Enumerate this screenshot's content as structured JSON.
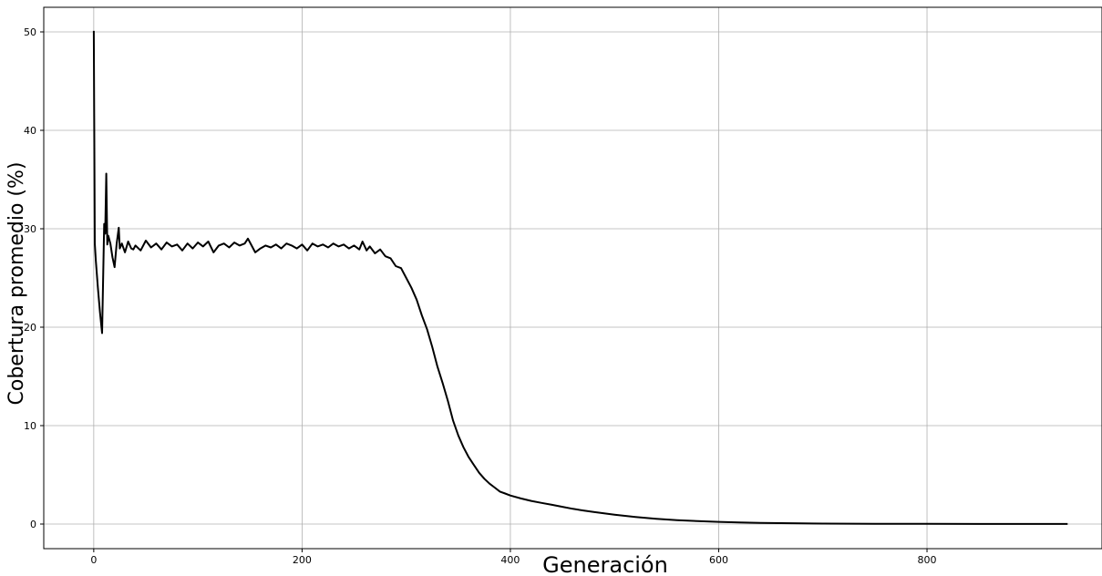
{
  "chart_data": {
    "type": "line",
    "title": "",
    "xlabel": "Generación",
    "ylabel": "Cobertura promedio (%)",
    "xlim": [
      -48,
      968
    ],
    "ylim": [
      -2.5,
      52.5
    ],
    "xticks": [
      0,
      200,
      400,
      600,
      800
    ],
    "yticks": [
      0,
      10,
      20,
      30,
      40,
      50
    ],
    "grid": true,
    "legend": "none",
    "line_color": "#000000",
    "series": [
      {
        "x": [
          0,
          1,
          2,
          4,
          6,
          8,
          10,
          11,
          12,
          13,
          14,
          16,
          18,
          20,
          22,
          24,
          25,
          27,
          30,
          33,
          36,
          38,
          40,
          45,
          50,
          55,
          60,
          65,
          70,
          75,
          80,
          85,
          90,
          95,
          100,
          105,
          110,
          115,
          120,
          125,
          130,
          135,
          140,
          145,
          148,
          150,
          155,
          160,
          165,
          170,
          175,
          180,
          185,
          190,
          195,
          200,
          205,
          210,
          215,
          220,
          225,
          230,
          235,
          240,
          245,
          250,
          255,
          258,
          262,
          265,
          270,
          275,
          280,
          285,
          290,
          295,
          300,
          305,
          310,
          315,
          320,
          325,
          330,
          335,
          340,
          345,
          350,
          355,
          360,
          365,
          370,
          375,
          380,
          385,
          390,
          395,
          400,
          410,
          420,
          430,
          440,
          450,
          460,
          470,
          480,
          490,
          500,
          520,
          540,
          560,
          580,
          600,
          620,
          640,
          660,
          680,
          700,
          750,
          800,
          850,
          900,
          935
        ],
        "y": [
          50.1,
          28.5,
          26.8,
          24.0,
          21.5,
          19.4,
          30.5,
          29.5,
          35.6,
          28.4,
          29.3,
          28.5,
          27.1,
          26.1,
          28.5,
          30.1,
          28.0,
          28.5,
          27.6,
          28.7,
          28.0,
          27.9,
          28.3,
          27.8,
          28.8,
          28.1,
          28.5,
          27.9,
          28.6,
          28.2,
          28.4,
          27.8,
          28.5,
          28.0,
          28.6,
          28.2,
          28.7,
          27.6,
          28.3,
          28.5,
          28.1,
          28.6,
          28.3,
          28.5,
          29.0,
          28.6,
          27.6,
          28.0,
          28.3,
          28.1,
          28.4,
          28.0,
          28.5,
          28.3,
          28.0,
          28.4,
          27.8,
          28.5,
          28.2,
          28.4,
          28.1,
          28.5,
          28.2,
          28.4,
          28.0,
          28.3,
          27.9,
          28.7,
          27.8,
          28.2,
          27.5,
          27.9,
          27.2,
          27.0,
          26.2,
          26.0,
          25.0,
          24.0,
          22.8,
          21.2,
          19.8,
          18.0,
          16.0,
          14.3,
          12.5,
          10.5,
          9.0,
          7.8,
          6.8,
          6.0,
          5.2,
          4.6,
          4.1,
          3.7,
          3.3,
          3.1,
          2.9,
          2.6,
          2.35,
          2.15,
          1.95,
          1.75,
          1.55,
          1.38,
          1.22,
          1.08,
          0.95,
          0.72,
          0.54,
          0.4,
          0.3,
          0.22,
          0.16,
          0.12,
          0.09,
          0.07,
          0.05,
          0.03,
          0.02,
          0.01,
          0.01,
          0.01
        ]
      }
    ]
  }
}
